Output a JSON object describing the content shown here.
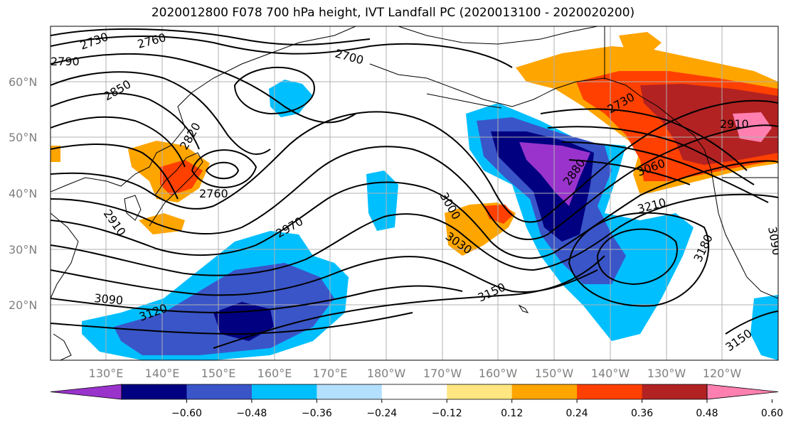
{
  "title": "2020012800 F078 700 hPa height, IVT Landfall PC (2020013100 - 2020020200)",
  "lat_labels": [
    "60°N",
    "50°N",
    "40°N",
    "30°N",
    "20°N"
  ],
  "lon_labels": [
    "130°E",
    "140°E",
    "150°E",
    "160°E",
    "170°E",
    "180°W",
    "170°W",
    "160°W",
    "150°W",
    "140°W",
    "130°W",
    "120°W"
  ],
  "contour_labels": [
    "2730",
    "2760",
    "2790",
    "2850",
    "2820",
    "2760",
    "2700",
    "2910",
    "2970",
    "3000",
    "3030",
    "3090",
    "3120",
    "3150",
    "2880",
    "3060",
    "2730",
    "2910",
    "3210",
    "3180",
    "3150",
    "3090"
  ],
  "colorbar": {
    "ticks": [
      "−0.60",
      "−0.48",
      "−0.36",
      "−0.24",
      "−0.12",
      "0.12",
      "0.24",
      "0.36",
      "0.48",
      "0.60"
    ],
    "colors": [
      "#9933cc",
      "#000080",
      "#3a55c8",
      "#00bfff",
      "#b3e0ff",
      "#ffffff",
      "#ffe680",
      "#ffa500",
      "#ff4000",
      "#b22222",
      "#ff80b0"
    ]
  }
}
